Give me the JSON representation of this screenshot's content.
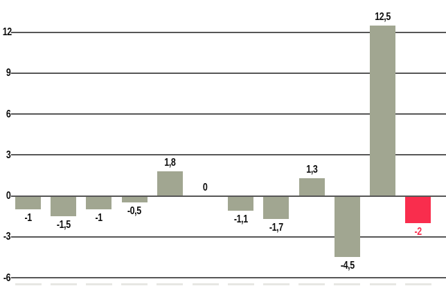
{
  "chart_data": {
    "type": "bar",
    "values": [
      -1,
      -1.5,
      -1,
      -0.5,
      1.8,
      0,
      -1.1,
      -1.7,
      1.3,
      -4.5,
      12.5,
      -2
    ],
    "value_labels": [
      "-1",
      "-1,5",
      "-1",
      "-0,5",
      "1,8",
      "0",
      "-1,1",
      "-1,7",
      "1,3",
      "-4,5",
      "12,5",
      "-2"
    ],
    "highlight_index": 11,
    "y_tick_values": [
      12,
      9,
      6,
      3,
      0,
      -3,
      -6
    ],
    "y_tick_labels": [
      "12",
      "9",
      "6",
      "3",
      "0",
      "-3",
      "-6"
    ],
    "ylim": [
      -6.6,
      14.3
    ],
    "grid": "horizontal-lines",
    "legend": "none",
    "title": "",
    "xlabel": "",
    "ylabel": "",
    "note": "category labels along the bottom edge are cut off by the image crop",
    "colors": {
      "bar": "#a1a691",
      "highlight": "#f92d4d",
      "gridline": "#565656",
      "text": "#0d0d0d",
      "background": "#ffffff",
      "truncated_label_stub": "#e7e7e3"
    }
  }
}
